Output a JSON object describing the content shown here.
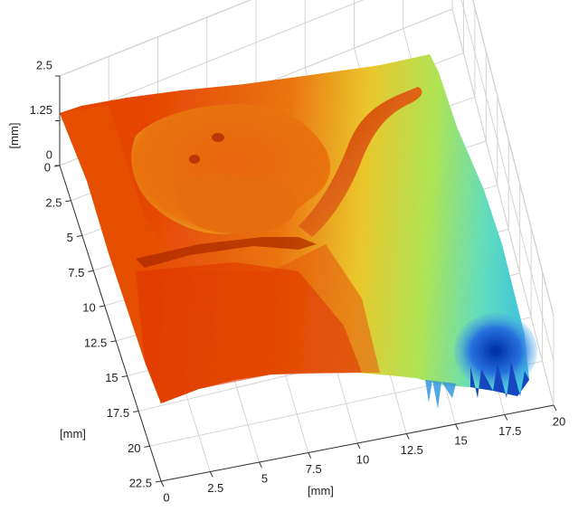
{
  "chart_data": {
    "type": "surface",
    "title": "",
    "x_axis": {
      "label": "[mm]",
      "ticks": [
        0,
        2.5,
        5,
        7.5,
        10,
        12.5,
        15,
        17.5,
        20
      ],
      "tick_labels": [
        "0",
        "2.5",
        "5",
        "7.5",
        "10",
        "12.5",
        "15",
        "17.5",
        "20"
      ],
      "range": [
        0,
        20
      ]
    },
    "y_axis": {
      "label": "[mm]",
      "ticks": [
        0,
        2.5,
        5,
        7.5,
        10,
        12.5,
        15,
        17.5,
        20,
        22.5
      ],
      "tick_labels": [
        "0",
        "2.5",
        "5",
        "7.5",
        "10",
        "12.5",
        "15",
        "17.5",
        "20",
        "22.5"
      ],
      "range": [
        0,
        22.5
      ]
    },
    "z_axis": {
      "label": "[mm]",
      "ticks": [
        0,
        1.25,
        2.5
      ],
      "tick_labels": [
        "0",
        "1.25",
        "2.5"
      ],
      "range": [
        0,
        2.5
      ]
    },
    "colormap": "jet",
    "colormap_stops": [
      "#0a2a9e",
      "#1e74e6",
      "#36c8f0",
      "#7ef0b0",
      "#dcf040",
      "#f8b21c",
      "#f05a12",
      "#d81e0a"
    ],
    "grid": true,
    "surface_features": [
      "raised circular plateau near x 2.5-9.5 mm, y 1-6.5 mm",
      "curved ridge from x 9 mm toward x 13 mm at the far edge",
      "depression near x 17-20 mm, y 14-17 mm"
    ]
  }
}
